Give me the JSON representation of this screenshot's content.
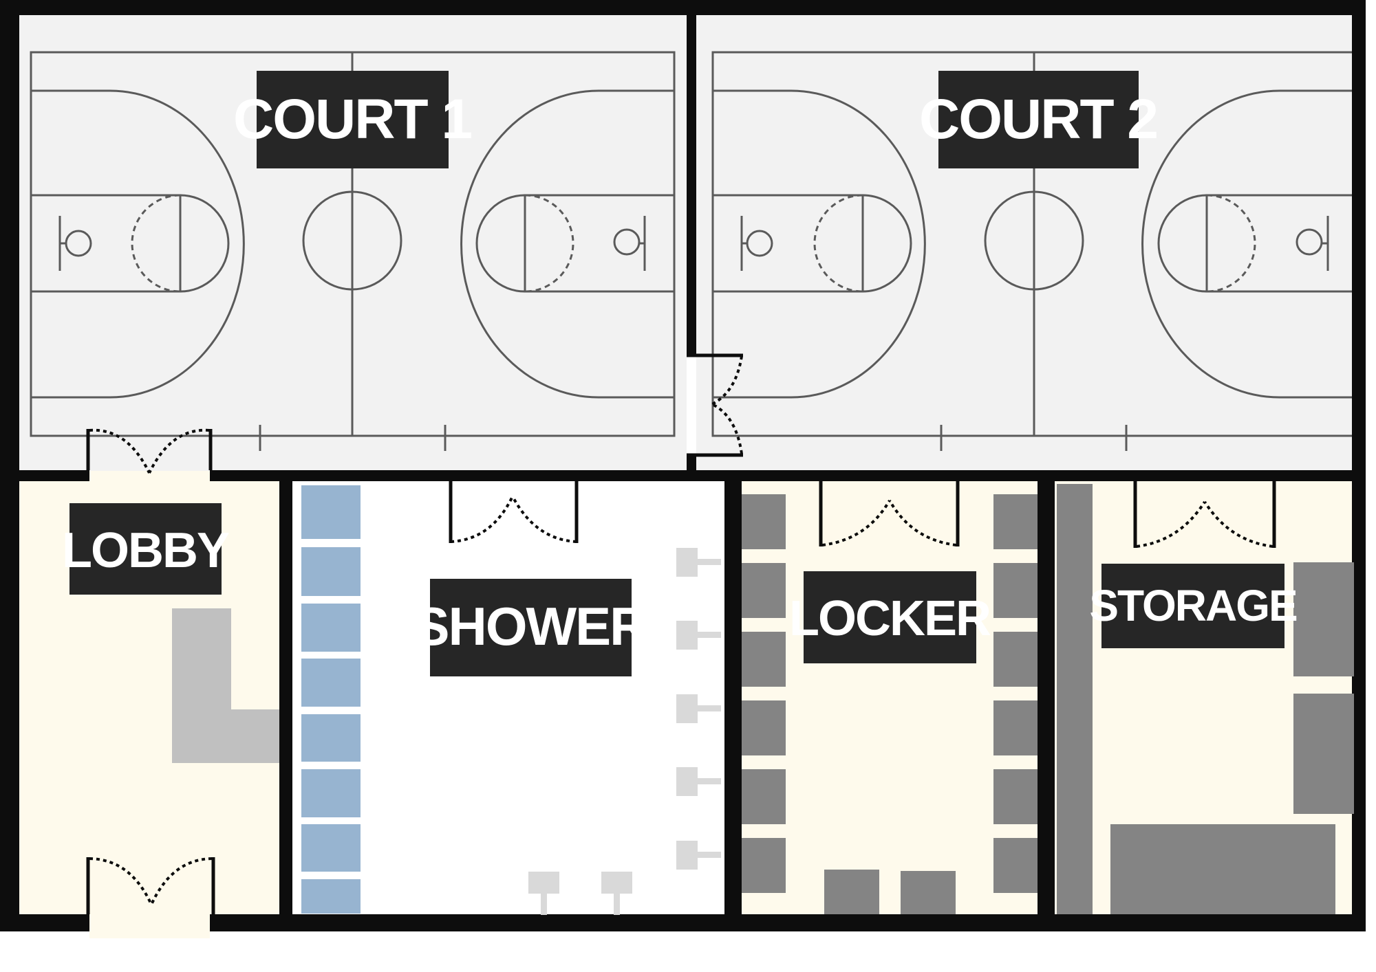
{
  "rooms": {
    "court1": "COURT 1",
    "court2": "COURT 2",
    "lobby": "LOBBY",
    "shower": "SHOWER",
    "locker": "LOCKER",
    "storage": "STORAGE"
  },
  "colors": {
    "wall": "#0d0d0d",
    "court_floor": "#f2f2f2",
    "court_line": "#5a5a5a",
    "cream_floor": "#fefaec",
    "shower_floor": "#ffffff",
    "label_bg": "#262626",
    "label_text": "#ffffff",
    "bench": "#c0c0c0",
    "cubby": "#97b4d0",
    "fixture": "#d9d9d9",
    "locker_unit": "#848484"
  }
}
